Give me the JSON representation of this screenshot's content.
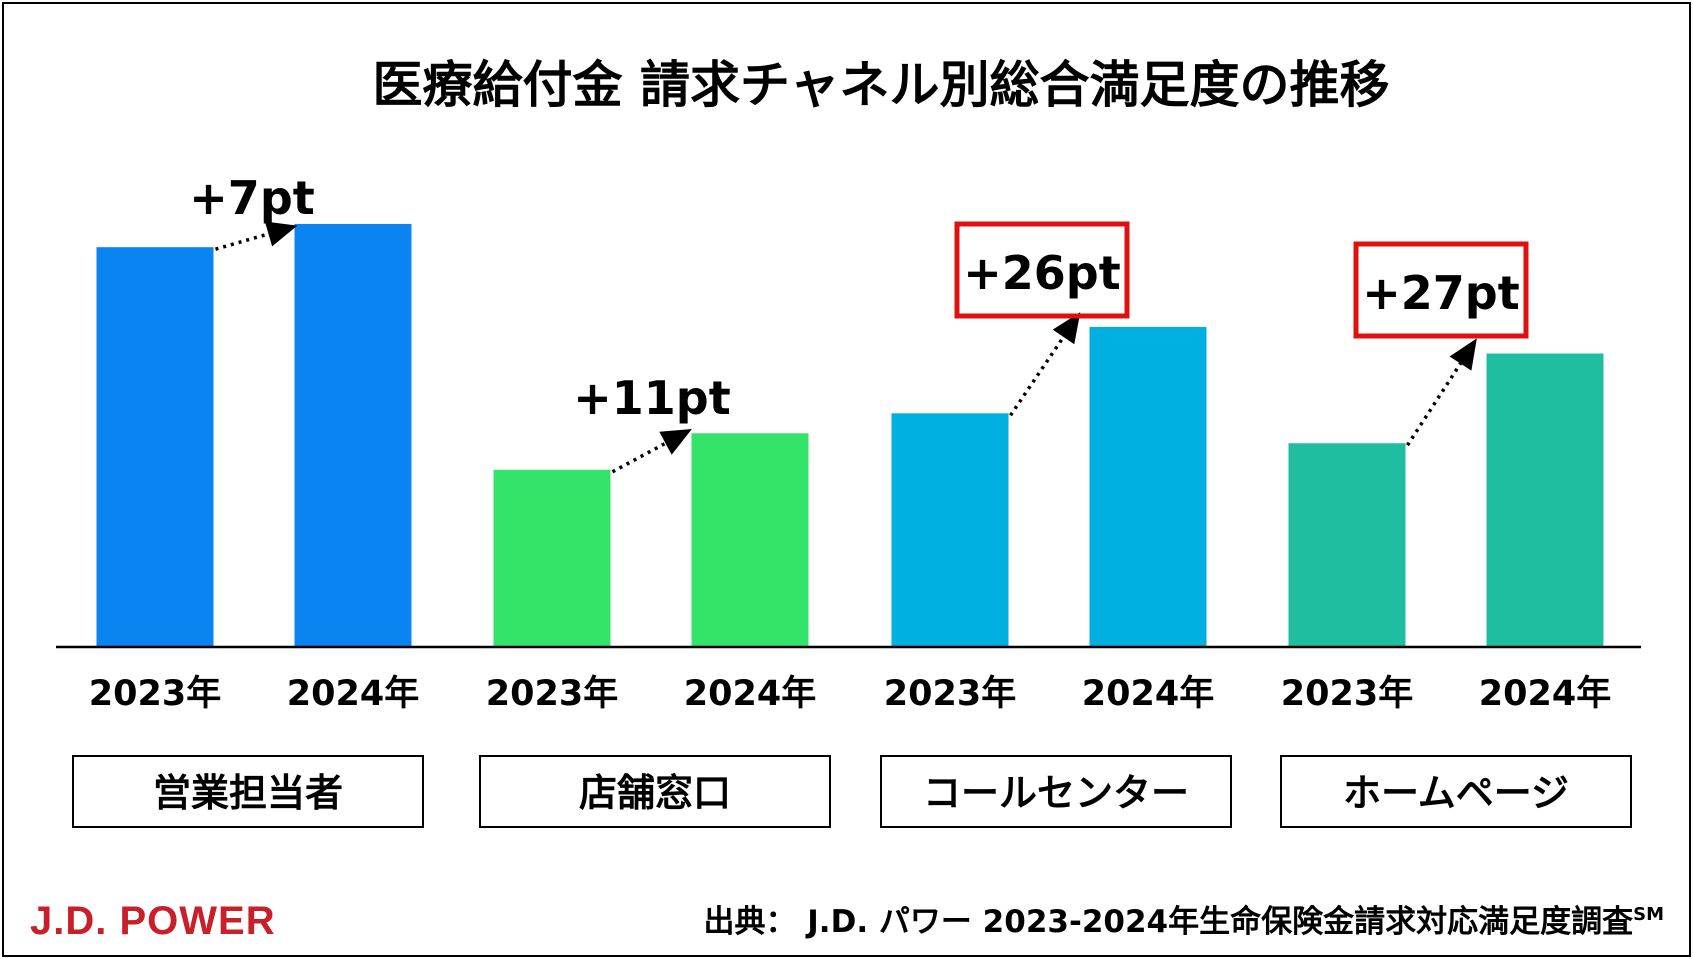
{
  "chart_data": {
    "type": "bar",
    "title": "医療給付金 請求チャネル別総合満足度の推移",
    "groups": [
      {
        "label": "営業担当者",
        "color": "#0A84F0",
        "years": [
          "2023年",
          "2024年"
        ],
        "values": [
          361,
          382
        ],
        "change_label": "+7pt",
        "highlighted": false
      },
      {
        "label": "店舗窓口",
        "color": "#34E468",
        "years": [
          "2023年",
          "2024年"
        ],
        "values": [
          160,
          193
        ],
        "change_label": "+11pt",
        "highlighted": false
      },
      {
        "label": "コールセンター",
        "color": "#00B0E0",
        "years": [
          "2023年",
          "2024年"
        ],
        "values": [
          211,
          289
        ],
        "change_label": "+26pt",
        "highlighted": true
      },
      {
        "label": "ホームページ",
        "color": "#20BEA0",
        "years": [
          "2023年",
          "2024年"
        ],
        "values": [
          184,
          265
        ],
        "change_label": "+27pt",
        "highlighted": true
      }
    ],
    "highlight_color": "#E01010",
    "ylim": [
      0,
      400
    ],
    "grid": false,
    "legend": "none"
  },
  "footer": {
    "logo": "J.D. POWER",
    "logo_color": "#C8202A",
    "source": "出典： J.D. パワー 2023-2024年生命保険金請求対応満足度調査",
    "source_superscript": "SM"
  }
}
